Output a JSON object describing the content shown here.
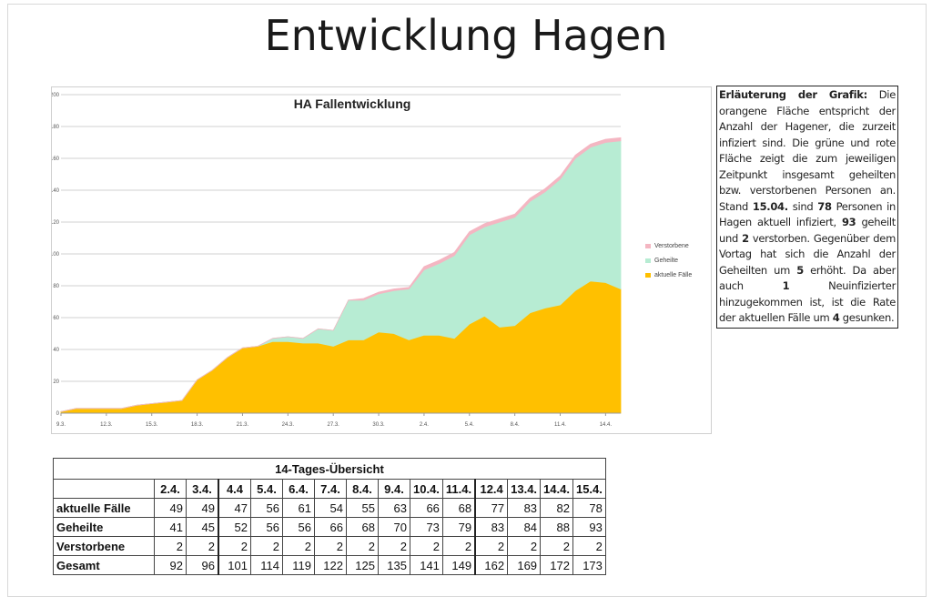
{
  "page": {
    "title": "Entwicklung Hagen"
  },
  "chart_data": {
    "type": "area",
    "title": "HA Fallentwicklung",
    "xlabel": "",
    "ylabel": "",
    "ylim": [
      0,
      200
    ],
    "yticks": [
      0,
      20,
      40,
      60,
      80,
      100,
      120,
      140,
      160,
      180,
      200
    ],
    "x": [
      "9.3.",
      "10.3.",
      "11.3.",
      "12.3.",
      "13.3.",
      "14.3.",
      "15.3.",
      "16.3.",
      "17.3.",
      "18.3.",
      "19.3.",
      "20.3.",
      "21.3.",
      "22.3.",
      "23.3.",
      "24.3.",
      "25.3.",
      "26.3.",
      "27.3.",
      "28.3.",
      "29.3.",
      "30.3.",
      "31.3.",
      "1.4.",
      "2.4.",
      "3.4.",
      "4.4.",
      "5.4.",
      "6.4.",
      "7.4.",
      "8.4.",
      "9.4.",
      "10.4.",
      "11.4.",
      "12.4.",
      "13.4.",
      "14.4.",
      "15.4."
    ],
    "x_tick_labels": [
      "9.3.",
      "12.3.",
      "15.3.",
      "18.3.",
      "21.3.",
      "24.3.",
      "27.3.",
      "30.3.",
      "2.4.",
      "5.4.",
      "8.4.",
      "11.4.",
      "14.4."
    ],
    "stacked": true,
    "series": [
      {
        "name": "aktuelle Fälle",
        "color": "#ffc000",
        "values": [
          1,
          3,
          3,
          3,
          3,
          5,
          6,
          7,
          8,
          21,
          27,
          35,
          41,
          42,
          45,
          45,
          44,
          44,
          42,
          46,
          46,
          51,
          50,
          46,
          49,
          49,
          47,
          56,
          61,
          54,
          55,
          63,
          66,
          68,
          77,
          83,
          82,
          78
        ]
      },
      {
        "name": "Geheilte",
        "color": "#b7ecd3",
        "values": [
          0,
          0,
          0,
          0,
          0,
          0,
          0,
          0,
          0,
          0,
          0,
          0,
          0,
          0,
          2,
          3,
          3,
          9,
          10,
          25,
          25,
          24,
          27,
          32,
          41,
          45,
          52,
          56,
          56,
          66,
          68,
          70,
          73,
          79,
          83,
          84,
          88,
          93
        ]
      },
      {
        "name": "Verstorbene",
        "color": "#f4b6c2",
        "values": [
          0,
          0,
          0,
          0,
          0,
          0,
          0,
          0,
          0,
          0,
          0,
          0,
          0,
          0,
          0,
          0,
          0,
          0,
          0,
          0,
          1,
          1,
          1,
          1,
          2,
          2,
          2,
          2,
          2,
          2,
          2,
          2,
          2,
          2,
          2,
          2,
          2,
          2
        ]
      }
    ],
    "legend_position": "right",
    "legend_order": [
      "Verstorbene",
      "Geheilte",
      "aktuelle Fälle"
    ],
    "grid": true
  },
  "note": {
    "segments": [
      {
        "t": "Erläuterung der Grafik:",
        "b": true
      },
      {
        "t": " Die orangene Fläche entspricht der Anzahl der Hagener, die zurzeit infiziert sind. Die grüne und rote Fläche zeigt die zum jeweiligen Zeitpunkt insgesamt geheilten bzw. verstorbenen Personen an. Stand ",
        "b": false
      },
      {
        "t": "15.04.",
        "b": true
      },
      {
        "t": " sind ",
        "b": false
      },
      {
        "t": "78",
        "b": true
      },
      {
        "t": " Personen in Hagen aktuell infiziert, ",
        "b": false
      },
      {
        "t": "93",
        "b": true
      },
      {
        "t": " geheilt und ",
        "b": false
      },
      {
        "t": "2",
        "b": true
      },
      {
        "t": " verstorben. Gegenüber dem Vortag hat sich die Anzahl der Geheilten um ",
        "b": false
      },
      {
        "t": "5",
        "b": true
      },
      {
        "t": " erhöht. Da aber auch ",
        "b": false
      },
      {
        "t": "1",
        "b": true
      },
      {
        "t": " Neuinfizierter hinzugekommen ist, ist die Rate der aktuellen Fälle um ",
        "b": false
      },
      {
        "t": "4",
        "b": true
      },
      {
        "t": " gesunken.",
        "b": false
      }
    ]
  },
  "table": {
    "caption": "14-Tages-Übersicht",
    "columns": [
      "2.4.",
      "3.4.",
      "4.4",
      "5.4.",
      "6.4.",
      "7.4.",
      "8.4.",
      "9.4.",
      "10.4.",
      "11.4.",
      "12.4",
      "13.4.",
      "14.4.",
      "15.4."
    ],
    "rows": [
      {
        "label": "aktuelle Fälle",
        "values": [
          49,
          49,
          47,
          56,
          61,
          54,
          55,
          63,
          66,
          68,
          77,
          83,
          82,
          78
        ]
      },
      {
        "label": "Geheilte",
        "values": [
          41,
          45,
          52,
          56,
          56,
          66,
          68,
          70,
          73,
          79,
          83,
          84,
          88,
          93
        ]
      },
      {
        "label": "Verstorbene",
        "values": [
          2,
          2,
          2,
          2,
          2,
          2,
          2,
          2,
          2,
          2,
          2,
          2,
          2,
          2
        ]
      },
      {
        "label": "Gesamt",
        "values": [
          92,
          96,
          101,
          114,
          119,
          122,
          125,
          135,
          141,
          149,
          162,
          169,
          172,
          173
        ]
      }
    ]
  }
}
